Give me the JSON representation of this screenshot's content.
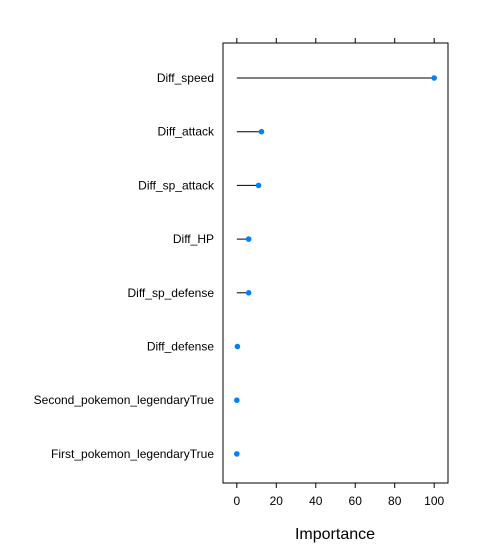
{
  "chart_data": {
    "type": "dot",
    "title": "",
    "xlabel": "Importance",
    "ylabel": "",
    "xlim": [
      -7,
      107
    ],
    "xticks": [
      0,
      20,
      40,
      60,
      80,
      100
    ],
    "grid": false,
    "categories": [
      "Diff_speed",
      "Diff_attack",
      "Diff_sp_attack",
      "Diff_HP",
      "Diff_sp_defense",
      "Diff_defense",
      "Second_pokemon_legendaryTrue",
      "First_pokemon_legendaryTrue"
    ],
    "values": [
      100,
      12.5,
      11,
      6,
      6,
      0.3,
      0,
      0
    ],
    "point_color": "#0080ff",
    "line_color": "#000000"
  }
}
